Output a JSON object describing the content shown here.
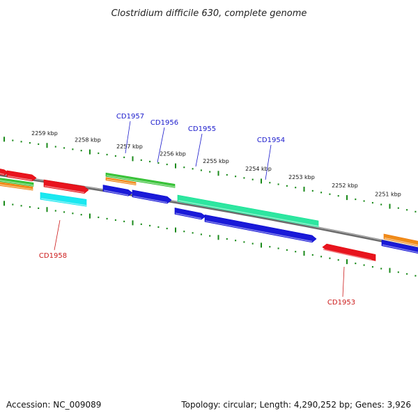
{
  "title": "Clostridium difficile 630, complete genome",
  "footer": {
    "accession": "Accession: NC_009089",
    "summary": "Topology: circular; Length: 4,290,252 bp; Genes: 3,926"
  },
  "colors": {
    "backbone": "#8a8a8a",
    "ticks": "#1a8a1a",
    "label_top": "#1a1acc",
    "label_bottom": "#cc1a1a",
    "red": "#e8141e",
    "blue": "#1a1ad8",
    "green": "#3ec43e",
    "orange": "#f08c1a",
    "teal": "#2ee6a0",
    "cyan": "#1ae8f0"
  },
  "ruler_labels": [
    "2259 kbp",
    "2258 kbp",
    "2257 kbp",
    "2256 kbp",
    "2255 kbp",
    "2254 kbp",
    "2253 kbp",
    "2252 kbp",
    "2251 kbp"
  ],
  "gene_labels_top": [
    "CD1957",
    "CD1956",
    "CD1955",
    "CD1954"
  ],
  "gene_labels_bottom": [
    "CD1958",
    "CD1953"
  ],
  "features": [
    {
      "color": "red"
    },
    {
      "color": "red"
    },
    {
      "color": "red"
    },
    {
      "color": "green"
    },
    {
      "color": "orange"
    },
    {
      "color": "cyan"
    },
    {
      "color": "green"
    },
    {
      "color": "orange"
    },
    {
      "color": "blue"
    },
    {
      "color": "blue"
    },
    {
      "color": "teal"
    },
    {
      "color": "blue"
    },
    {
      "color": "blue"
    },
    {
      "color": "red"
    },
    {
      "color": "orange"
    },
    {
      "color": "blue"
    }
  ]
}
